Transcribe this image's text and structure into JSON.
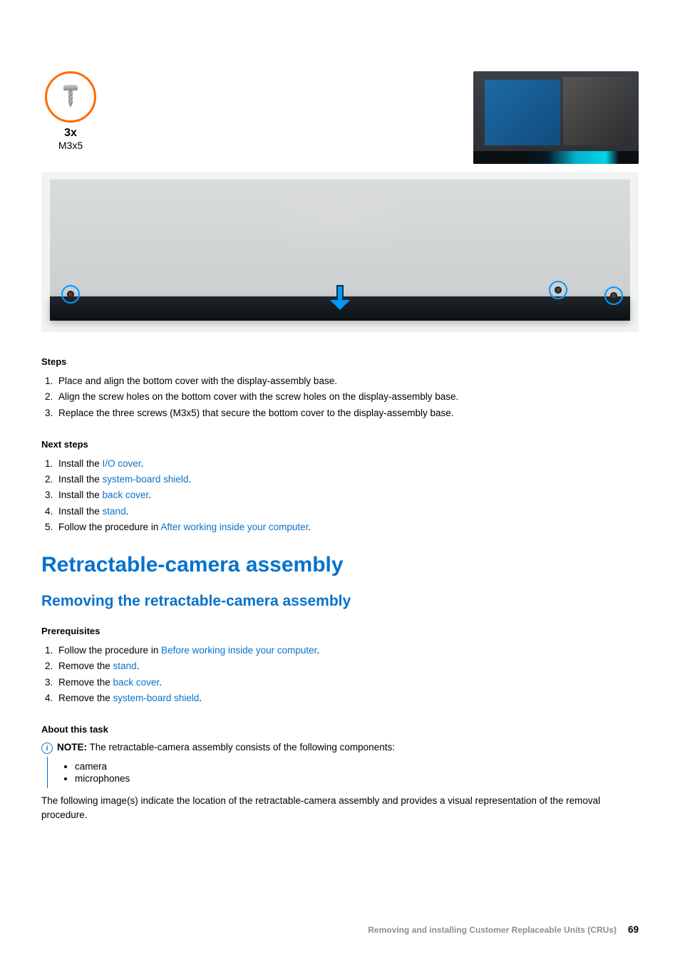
{
  "colors": {
    "link": "#0672cb",
    "accent_orange": "#ff6a00",
    "arrow_blue": "#0099ff",
    "text": "#000000",
    "footer_grey": "#8a8f94",
    "background": "#ffffff"
  },
  "figure": {
    "screw_quantity": "3x",
    "screw_spec": "M3x5"
  },
  "steps_section": {
    "heading": "Steps",
    "items": [
      "Place and align the bottom cover with the display-assembly base.",
      "Align the screw holes on the bottom cover with the screw holes on the display-assembly base.",
      "Replace the three screws (M3x5) that secure the bottom cover to the display-assembly base."
    ]
  },
  "next_steps_section": {
    "heading": "Next steps",
    "items": [
      {
        "prefix": "Install the ",
        "link": "I/O cover",
        "suffix": "."
      },
      {
        "prefix": "Install the ",
        "link": "system-board shield",
        "suffix": "."
      },
      {
        "prefix": "Install the ",
        "link": "back cover",
        "suffix": "."
      },
      {
        "prefix": "Install the ",
        "link": "stand",
        "suffix": "."
      },
      {
        "prefix": "Follow the procedure in ",
        "link": "After working inside your computer",
        "suffix": "."
      }
    ]
  },
  "h1": "Retractable-camera assembly",
  "h2": "Removing the retractable-camera assembly",
  "prereq_section": {
    "heading": "Prerequisites",
    "items": [
      {
        "prefix": "Follow the procedure in ",
        "link": "Before working inside your computer",
        "suffix": "."
      },
      {
        "prefix": "Remove the ",
        "link": "stand",
        "suffix": "."
      },
      {
        "prefix": "Remove the ",
        "link": "back cover",
        "suffix": "."
      },
      {
        "prefix": "Remove the ",
        "link": "system-board shield",
        "suffix": "."
      }
    ]
  },
  "about_section": {
    "heading": "About this task",
    "note_label": "NOTE:",
    "note_text": " The retractable-camera assembly consists of the following components:",
    "note_bullets": [
      "camera",
      "microphones"
    ],
    "paragraph": "The following image(s) indicate the location of the retractable-camera assembly and provides a visual representation of the removal procedure."
  },
  "footer": {
    "chapter": "Removing and installing Customer Replaceable Units (CRUs)",
    "page": "69"
  }
}
